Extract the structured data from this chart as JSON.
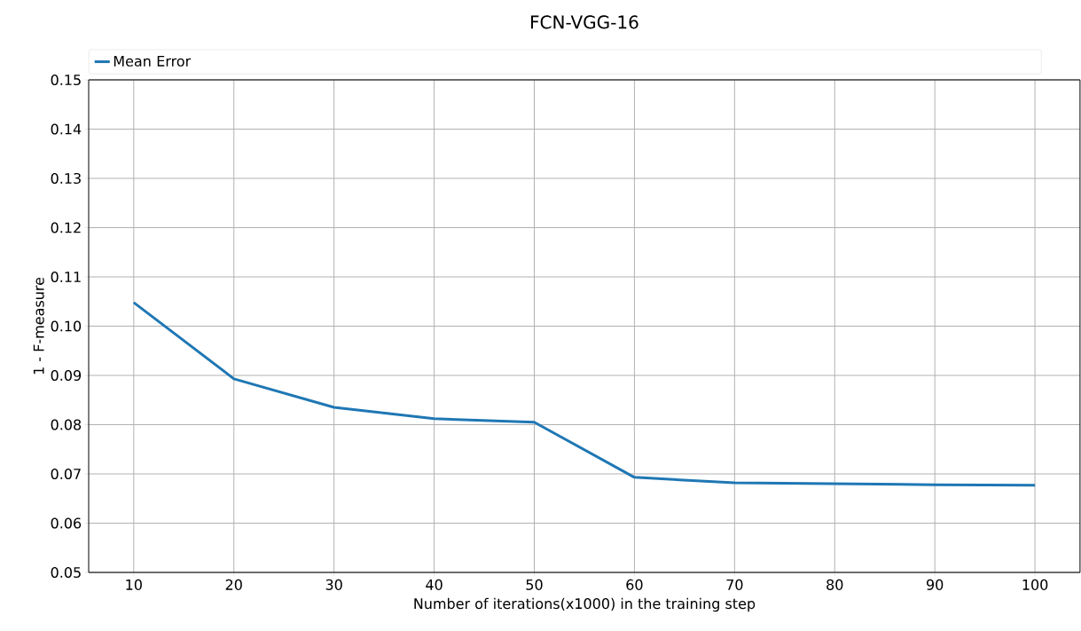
{
  "chart_data": {
    "type": "line",
    "title": "FCN-VGG-16",
    "xlabel": "Number of iterations(x1000) in the training step",
    "ylabel": "1 - F-measure",
    "x": [
      10,
      20,
      30,
      40,
      50,
      60,
      70,
      80,
      90,
      100
    ],
    "series": [
      {
        "name": "Mean Error",
        "color": "#1f77b4",
        "values": [
          0.1048,
          0.0893,
          0.0835,
          0.0812,
          0.0805,
          0.0693,
          0.0682,
          0.068,
          0.0678,
          0.0677
        ]
      }
    ],
    "xlim": [
      5.5,
      104.5
    ],
    "ylim": [
      0.05,
      0.15
    ],
    "xticks": [
      10,
      20,
      30,
      40,
      50,
      60,
      70,
      80,
      90,
      100
    ],
    "yticks": [
      0.05,
      0.06,
      0.07,
      0.08,
      0.09,
      {
        "value": 0.1,
        "label": "0.10"
      },
      0.11,
      0.12,
      0.13,
      0.14,
      0.15
    ],
    "grid": true,
    "legend": "top",
    "marker": "none",
    "line_style": "solid"
  }
}
